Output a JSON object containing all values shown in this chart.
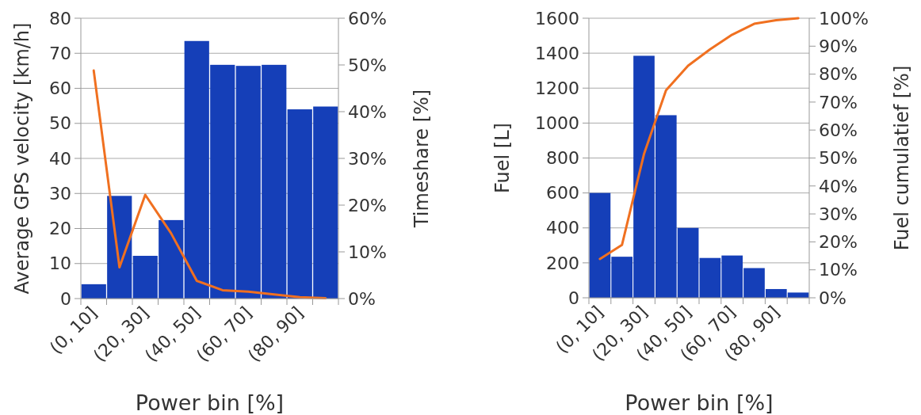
{
  "chart_data": [
    {
      "type": "bar",
      "xlabel": "Power bin [%]",
      "ylabel": "Average GPS velocity [km/h]",
      "y2label": "Timeshare [%]",
      "categories": [
        "(0, 10]",
        null,
        "(20, 30]",
        null,
        "(40, 50]",
        null,
        "(60, 70]",
        null,
        "(80, 90]",
        null
      ],
      "series": [
        {
          "color": "#153fb8",
          "values": [
            4.1,
            29.3,
            12.2,
            22.4,
            73.5,
            66.7,
            66.4,
            66.7,
            54,
            54.8
          ]
        },
        {
          "type": "line",
          "axis": "y2",
          "color": "#f07020",
          "values": [
            48.8,
            6.7,
            22.2,
            14,
            3.8,
            1.8,
            1.5,
            0.9,
            0.3,
            0.1
          ]
        }
      ],
      "ylim": [
        0,
        80
      ],
      "yticks": [
        0,
        10,
        20,
        30,
        40,
        50,
        60,
        70,
        80
      ],
      "y2lim": [
        0,
        60
      ],
      "y2ticks": [
        {
          "value": 0,
          "label": "0%"
        },
        {
          "value": 10,
          "label": "10%"
        },
        {
          "value": 20,
          "label": "20%"
        },
        {
          "value": 30,
          "label": "30%"
        },
        {
          "value": 40,
          "label": "40%"
        },
        {
          "value": 50,
          "label": "50%"
        },
        {
          "value": 60,
          "label": "60%"
        }
      ],
      "grid": "y"
    },
    {
      "type": "bar",
      "xlabel": "Power bin [%]",
      "ylabel": "Fuel [L]",
      "y2label": "Fuel cumulatief [%]",
      "categories": [
        "(0, 10]",
        null,
        "(20, 30]",
        null,
        "(40, 50]",
        null,
        "(60, 70]",
        null,
        "(80, 90]",
        null
      ],
      "series": [
        {
          "color": "#153fb8",
          "values": [
            600,
            235,
            1385,
            1045,
            400,
            228,
            242,
            170,
            50,
            30
          ]
        },
        {
          "type": "line",
          "axis": "y2",
          "color": "#f07020",
          "values": [
            13.9,
            18.9,
            51.4,
            74.2,
            83,
            88.9,
            94.1,
            98,
            99.3,
            100
          ]
        }
      ],
      "ylim": [
        0,
        1600
      ],
      "yticks": [
        0,
        200,
        400,
        600,
        800,
        1000,
        1200,
        1400,
        1600
      ],
      "y2lim": [
        0,
        100
      ],
      "y2ticks": [
        {
          "value": 0,
          "label": "0%"
        },
        {
          "value": 10,
          "label": "10%"
        },
        {
          "value": 20,
          "label": "20%"
        },
        {
          "value": 30,
          "label": "30%"
        },
        {
          "value": 40,
          "label": "40%"
        },
        {
          "value": 50,
          "label": "50%"
        },
        {
          "value": 60,
          "label": "60%"
        },
        {
          "value": 70,
          "label": "70%"
        },
        {
          "value": 80,
          "label": "80%"
        },
        {
          "value": 90,
          "label": "90%"
        },
        {
          "value": 100,
          "label": "100%"
        }
      ],
      "grid": "y"
    }
  ]
}
